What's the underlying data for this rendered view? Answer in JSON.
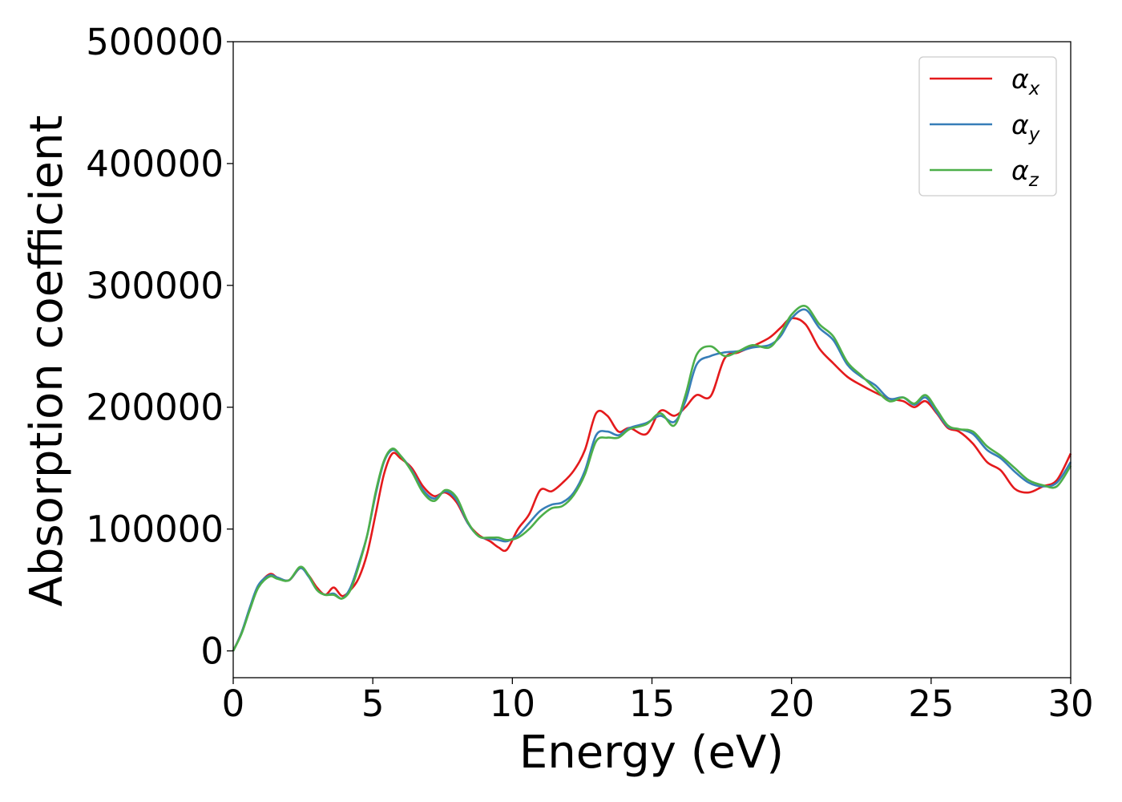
{
  "chart_data": {
    "type": "line",
    "title": "",
    "xlabel": "Energy (eV)",
    "ylabel": "Absorption coefficient",
    "xlim": [
      0,
      30
    ],
    "ylim": [
      -22000,
      500000
    ],
    "xticks": [
      0,
      5,
      10,
      15,
      20,
      25,
      30
    ],
    "xtick_labels": [
      "0",
      "5",
      "10",
      "15",
      "20",
      "25",
      "30"
    ],
    "yticks": [
      0,
      100000,
      200000,
      300000,
      400000,
      500000
    ],
    "ytick_labels": [
      "0",
      "100000",
      "200000",
      "300000",
      "400000",
      "500000"
    ],
    "grid": false,
    "legend_position": "top-right",
    "series": [
      {
        "name": "α_x",
        "label_base": "α",
        "label_sub": "x",
        "color": "#e41a1c",
        "points": [
          [
            0,
            0
          ],
          [
            0.3,
            15000
          ],
          [
            0.6,
            35000
          ],
          [
            0.9,
            53000
          ],
          [
            1.3,
            63000
          ],
          [
            1.6,
            60000
          ],
          [
            2.0,
            58000
          ],
          [
            2.4,
            68000
          ],
          [
            2.7,
            62000
          ],
          [
            3.0,
            52000
          ],
          [
            3.3,
            46000
          ],
          [
            3.6,
            52000
          ],
          [
            3.9,
            45000
          ],
          [
            4.2,
            50000
          ],
          [
            4.5,
            60000
          ],
          [
            4.8,
            80000
          ],
          [
            5.1,
            112000
          ],
          [
            5.4,
            145000
          ],
          [
            5.7,
            162000
          ],
          [
            6.0,
            158000
          ],
          [
            6.4,
            150000
          ],
          [
            6.8,
            135000
          ],
          [
            7.2,
            127000
          ],
          [
            7.6,
            130000
          ],
          [
            8.0,
            122000
          ],
          [
            8.4,
            105000
          ],
          [
            8.8,
            95000
          ],
          [
            9.2,
            90000
          ],
          [
            9.5,
            85000
          ],
          [
            9.8,
            83000
          ],
          [
            10.2,
            100000
          ],
          [
            10.6,
            112000
          ],
          [
            11.0,
            132000
          ],
          [
            11.4,
            131000
          ],
          [
            11.8,
            138000
          ],
          [
            12.2,
            148000
          ],
          [
            12.6,
            165000
          ],
          [
            13.0,
            195000
          ],
          [
            13.4,
            193000
          ],
          [
            13.8,
            180000
          ],
          [
            14.2,
            183000
          ],
          [
            14.8,
            178000
          ],
          [
            15.3,
            197000
          ],
          [
            15.8,
            193000
          ],
          [
            16.2,
            200000
          ],
          [
            16.6,
            210000
          ],
          [
            17.1,
            209000
          ],
          [
            17.6,
            240000
          ],
          [
            18.1,
            245000
          ],
          [
            18.6,
            250000
          ],
          [
            19.2,
            257000
          ],
          [
            19.6,
            265000
          ],
          [
            20.0,
            273000
          ],
          [
            20.5,
            268000
          ],
          [
            21.0,
            248000
          ],
          [
            21.5,
            236000
          ],
          [
            22.0,
            225000
          ],
          [
            22.5,
            218000
          ],
          [
            23.0,
            212000
          ],
          [
            23.5,
            207000
          ],
          [
            24.0,
            205000
          ],
          [
            24.4,
            200000
          ],
          [
            24.8,
            205000
          ],
          [
            25.2,
            195000
          ],
          [
            25.6,
            183000
          ],
          [
            26.0,
            180000
          ],
          [
            26.5,
            170000
          ],
          [
            27.0,
            155000
          ],
          [
            27.5,
            148000
          ],
          [
            28.0,
            133000
          ],
          [
            28.5,
            130000
          ],
          [
            29.0,
            135000
          ],
          [
            29.5,
            140000
          ],
          [
            30.0,
            162000
          ]
        ]
      },
      {
        "name": "α_y",
        "label_base": "α",
        "label_sub": "y",
        "color": "#377eb8",
        "points": [
          [
            0,
            0
          ],
          [
            0.3,
            15000
          ],
          [
            0.6,
            36000
          ],
          [
            0.9,
            54000
          ],
          [
            1.3,
            62000
          ],
          [
            1.6,
            60000
          ],
          [
            2.0,
            58000
          ],
          [
            2.4,
            68000
          ],
          [
            2.7,
            61000
          ],
          [
            3.0,
            50000
          ],
          [
            3.3,
            46000
          ],
          [
            3.6,
            47000
          ],
          [
            3.9,
            43000
          ],
          [
            4.2,
            52000
          ],
          [
            4.5,
            72000
          ],
          [
            4.8,
            95000
          ],
          [
            5.1,
            128000
          ],
          [
            5.4,
            155000
          ],
          [
            5.7,
            165000
          ],
          [
            6.0,
            160000
          ],
          [
            6.4,
            148000
          ],
          [
            6.8,
            132000
          ],
          [
            7.2,
            125000
          ],
          [
            7.6,
            131000
          ],
          [
            8.0,
            124000
          ],
          [
            8.4,
            105000
          ],
          [
            8.8,
            94000
          ],
          [
            9.2,
            92000
          ],
          [
            9.5,
            91000
          ],
          [
            9.8,
            90000
          ],
          [
            10.2,
            95000
          ],
          [
            10.6,
            105000
          ],
          [
            11.0,
            115000
          ],
          [
            11.4,
            120000
          ],
          [
            11.8,
            122000
          ],
          [
            12.2,
            130000
          ],
          [
            12.6,
            148000
          ],
          [
            13.0,
            177000
          ],
          [
            13.4,
            180000
          ],
          [
            13.8,
            177000
          ],
          [
            14.2,
            183000
          ],
          [
            14.8,
            187000
          ],
          [
            15.3,
            193000
          ],
          [
            15.8,
            188000
          ],
          [
            16.2,
            205000
          ],
          [
            16.6,
            235000
          ],
          [
            17.1,
            242000
          ],
          [
            17.6,
            245000
          ],
          [
            18.1,
            246000
          ],
          [
            18.6,
            249000
          ],
          [
            19.2,
            251000
          ],
          [
            19.6,
            258000
          ],
          [
            20.0,
            273000
          ],
          [
            20.5,
            280000
          ],
          [
            21.0,
            265000
          ],
          [
            21.5,
            255000
          ],
          [
            22.0,
            235000
          ],
          [
            22.5,
            225000
          ],
          [
            23.0,
            218000
          ],
          [
            23.5,
            207000
          ],
          [
            24.0,
            208000
          ],
          [
            24.4,
            202000
          ],
          [
            24.8,
            208000
          ],
          [
            25.2,
            196000
          ],
          [
            25.6,
            184000
          ],
          [
            26.0,
            182000
          ],
          [
            26.5,
            178000
          ],
          [
            27.0,
            165000
          ],
          [
            27.5,
            158000
          ],
          [
            28.0,
            147000
          ],
          [
            28.5,
            138000
          ],
          [
            29.0,
            135000
          ],
          [
            29.5,
            138000
          ],
          [
            30.0,
            155000
          ]
        ]
      },
      {
        "name": "α_z",
        "label_base": "α",
        "label_sub": "z",
        "color": "#4daf4a",
        "points": [
          [
            0,
            0
          ],
          [
            0.3,
            14000
          ],
          [
            0.6,
            34000
          ],
          [
            0.9,
            52000
          ],
          [
            1.3,
            61000
          ],
          [
            1.6,
            59000
          ],
          [
            2.0,
            58000
          ],
          [
            2.4,
            69000
          ],
          [
            2.7,
            62000
          ],
          [
            3.0,
            50000
          ],
          [
            3.3,
            46000
          ],
          [
            3.6,
            46000
          ],
          [
            3.9,
            43000
          ],
          [
            4.2,
            50000
          ],
          [
            4.5,
            70000
          ],
          [
            4.8,
            95000
          ],
          [
            5.1,
            130000
          ],
          [
            5.4,
            156000
          ],
          [
            5.7,
            166000
          ],
          [
            6.0,
            160000
          ],
          [
            6.4,
            147000
          ],
          [
            6.8,
            130000
          ],
          [
            7.2,
            123000
          ],
          [
            7.6,
            132000
          ],
          [
            8.0,
            126000
          ],
          [
            8.4,
            106000
          ],
          [
            8.8,
            94000
          ],
          [
            9.2,
            93000
          ],
          [
            9.5,
            93000
          ],
          [
            9.8,
            91000
          ],
          [
            10.2,
            93000
          ],
          [
            10.6,
            100000
          ],
          [
            11.0,
            110000
          ],
          [
            11.4,
            117000
          ],
          [
            11.8,
            119000
          ],
          [
            12.2,
            128000
          ],
          [
            12.6,
            145000
          ],
          [
            13.0,
            172000
          ],
          [
            13.4,
            175000
          ],
          [
            13.8,
            175000
          ],
          [
            14.2,
            182000
          ],
          [
            14.8,
            186000
          ],
          [
            15.3,
            195000
          ],
          [
            15.8,
            185000
          ],
          [
            16.2,
            210000
          ],
          [
            16.6,
            243000
          ],
          [
            17.1,
            250000
          ],
          [
            17.6,
            242000
          ],
          [
            18.1,
            246000
          ],
          [
            18.6,
            251000
          ],
          [
            19.2,
            249000
          ],
          [
            19.6,
            260000
          ],
          [
            20.0,
            276000
          ],
          [
            20.5,
            283000
          ],
          [
            21.0,
            268000
          ],
          [
            21.5,
            258000
          ],
          [
            22.0,
            237000
          ],
          [
            22.5,
            226000
          ],
          [
            23.0,
            215000
          ],
          [
            23.5,
            205000
          ],
          [
            24.0,
            208000
          ],
          [
            24.4,
            203000
          ],
          [
            24.8,
            210000
          ],
          [
            25.2,
            198000
          ],
          [
            25.6,
            185000
          ],
          [
            26.0,
            182000
          ],
          [
            26.5,
            180000
          ],
          [
            27.0,
            168000
          ],
          [
            27.5,
            160000
          ],
          [
            28.0,
            150000
          ],
          [
            28.5,
            140000
          ],
          [
            29.0,
            136000
          ],
          [
            29.5,
            135000
          ],
          [
            30.0,
            152000
          ]
        ]
      }
    ]
  }
}
